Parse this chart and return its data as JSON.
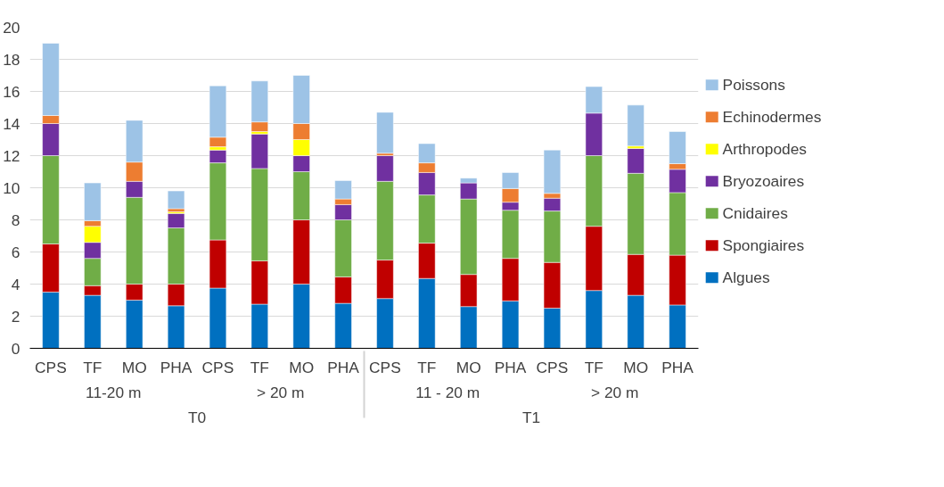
{
  "chart_data": {
    "type": "bar",
    "stacked": true,
    "categories": [
      "CPS",
      "TF",
      "MO",
      "PHA",
      "CPS",
      "TF",
      "MO",
      "PHA",
      "CPS",
      "TF",
      "MO",
      "PHA",
      "CPS",
      "TF",
      "MO",
      "PHA"
    ],
    "annotations": [
      "11-20 m",
      "> 20 m",
      "11 - 20 m",
      "> 20 m",
      "T0",
      "T1"
    ],
    "series": [
      {
        "name": "Algues",
        "color": "#0070c0",
        "values": [
          3.5,
          3.3,
          3.0,
          2.65,
          3.75,
          2.75,
          4.0,
          2.8,
          3.1,
          4.35,
          2.6,
          2.95,
          2.5,
          3.6,
          3.3,
          2.7
        ]
      },
      {
        "name": "Spongiaires",
        "color": "#c00000",
        "values": [
          3.0,
          0.6,
          1.0,
          1.35,
          3.0,
          2.7,
          4.0,
          1.65,
          2.4,
          2.2,
          2.0,
          2.65,
          2.85,
          4.0,
          2.55,
          3.1
        ]
      },
      {
        "name": "Cnidaires",
        "color": "#70ad47",
        "values": [
          5.5,
          1.7,
          5.4,
          3.5,
          4.8,
          5.75,
          3.0,
          3.55,
          4.9,
          3.0,
          4.7,
          3.0,
          3.2,
          4.4,
          5.05,
          3.9
        ]
      },
      {
        "name": "Bryozoaires",
        "color": "#7030a0",
        "values": [
          2.0,
          1.0,
          1.0,
          0.9,
          0.8,
          2.15,
          1.0,
          0.95,
          1.6,
          1.4,
          1.0,
          0.5,
          0.8,
          2.65,
          1.55,
          1.45
        ]
      },
      {
        "name": "Arthropodes",
        "color": "#ffff00",
        "values": [
          null,
          1.0,
          null,
          0.1,
          0.2,
          0.15,
          1.0,
          null,
          null,
          null,
          null,
          null,
          null,
          null,
          0.15,
          null
        ]
      },
      {
        "name": "Echinodermes",
        "color": "#ed7d31",
        "values": [
          0.5,
          0.35,
          1.2,
          0.2,
          0.6,
          0.6,
          1.0,
          0.35,
          0.15,
          0.6,
          null,
          0.85,
          0.3,
          null,
          null,
          0.35
        ]
      },
      {
        "name": "Poissons",
        "color": "#9dc3e6",
        "values": [
          4.5,
          2.35,
          2.6,
          1.1,
          3.2,
          2.55,
          3.0,
          1.15,
          2.55,
          1.2,
          0.3,
          1.0,
          2.7,
          1.65,
          2.55,
          2.0
        ]
      }
    ],
    "ylim": [
      0,
      20
    ],
    "yticks": [
      0,
      2,
      4,
      6,
      8,
      10,
      12,
      14,
      16,
      18,
      20
    ],
    "grid": "y",
    "legend": "right"
  }
}
